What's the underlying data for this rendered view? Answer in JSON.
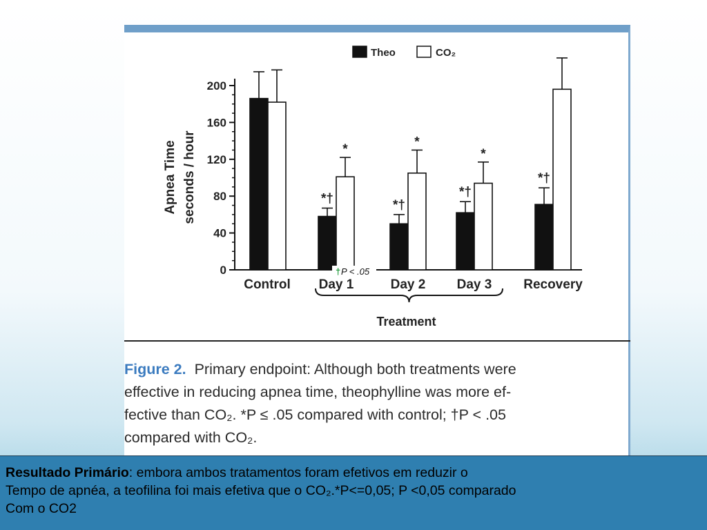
{
  "chart_data": {
    "type": "bar",
    "categories": [
      "Control",
      "Day 1",
      "Day 2",
      "Day 3",
      "Recovery"
    ],
    "series": [
      {
        "name": "Theo",
        "fill": "#111111",
        "values": [
          186,
          58,
          50,
          62,
          71
        ],
        "errors": [
          29,
          9,
          10,
          12,
          18
        ]
      },
      {
        "name": "CO₂",
        "fill": "#ffffff",
        "values": [
          182,
          101,
          105,
          94,
          196
        ],
        "errors": [
          35,
          21,
          25,
          23,
          34
        ]
      }
    ],
    "ylabel": "Apnea Time",
    "ylabel2": "seconds / hour",
    "xlabel": "Treatment",
    "ylim": [
      0,
      200
    ],
    "yticks": [
      "0",
      "40",
      "80",
      "120",
      "160",
      "200"
    ],
    "annotations": {
      "theo": [
        "",
        "*†",
        "*†",
        "*†",
        "*†"
      ],
      "co2": [
        "",
        "*",
        "*",
        "*",
        ""
      ]
    },
    "inline_note": "P < .05",
    "inline_note_symbol": "†",
    "legend_position": "top-right",
    "colors": {
      "theo": "#111111",
      "co2": "#ffffff",
      "dagger_green": "#1f9a3a"
    }
  },
  "caption": {
    "figure_label": "Figure 2.",
    "line1": "Primary endpoint: Although both treatments were",
    "line2": "effective in reducing apnea time, theophylline was more ef-",
    "line3": "fective than CO₂. *P ≤ .05 compared with control; †P < .05",
    "line4": "compared with CO₂."
  },
  "summary": {
    "lead": "Resultado Primário",
    "line1_rest": ": embora  ambos tratamentos foram efetivos  em reduzir o",
    "line2": "Tempo de apnéa, a teofilina foi mais efetiva que o CO₂.*P<=0,05; P <0,05 comparado",
    "line3": "Com o CO2"
  },
  "colors": {
    "panel_border": "#6f9fc9",
    "figure_label": "#3b7bbf",
    "summary_background": "#2f7fb0"
  }
}
